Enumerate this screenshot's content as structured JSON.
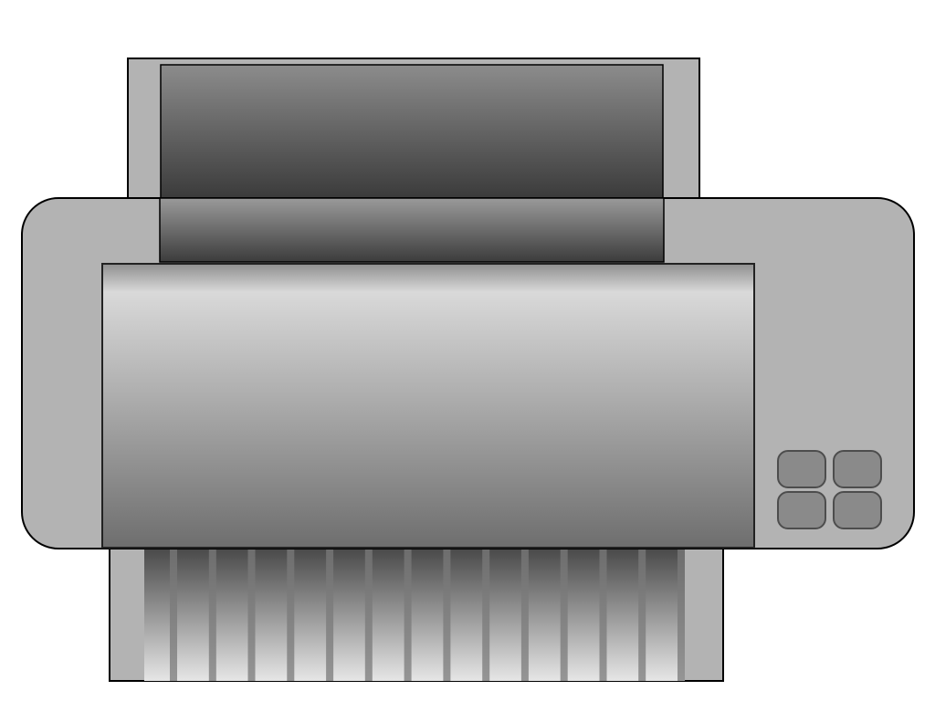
{
  "illustration": {
    "subject": "printer-icon",
    "colors": {
      "body": "#b3b3b3",
      "outline": "#000000",
      "tray_dark": "#3a3a3a",
      "tray_mid": "#8c8c8c",
      "cover_light": "#d9d9d9",
      "cover_dark": "#6e6e6e",
      "button_fill": "#8a8a8a",
      "button_stroke": "#4d4d4d",
      "stripe": "#ffffff"
    },
    "control_buttons": [
      "button-top-left",
      "button-top-right",
      "button-bottom-left",
      "button-bottom-right"
    ],
    "output_slot_count": 14
  }
}
